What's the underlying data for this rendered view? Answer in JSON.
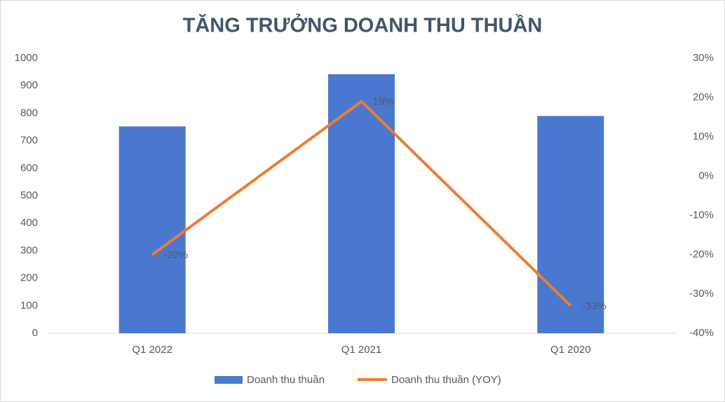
{
  "chart_data": {
    "type": "bar",
    "title": "TĂNG TRƯỞNG DOANH THU THUẦN",
    "categories": [
      "Q1 2022",
      "Q1 2021",
      "Q1 2020"
    ],
    "series": [
      {
        "name": "Doanh thu thuần",
        "type": "bar",
        "color": "#4a78cf",
        "values": [
          752,
          942,
          790
        ]
      },
      {
        "name": "Doanh thu thuần (YOY)",
        "type": "line",
        "axis": "y2",
        "color": "#ed7d31",
        "values": [
          -20,
          19,
          -33
        ],
        "value_labels": [
          "-20%",
          "19%",
          "-33%"
        ]
      }
    ],
    "ylim": [
      0,
      1000
    ],
    "yticks": [
      0,
      100,
      200,
      300,
      400,
      500,
      600,
      700,
      800,
      900,
      1000
    ],
    "y2lim": [
      -40,
      30
    ],
    "y2ticks": [
      {
        "value": 30,
        "label": "30%"
      },
      {
        "value": 20,
        "label": "20%"
      },
      {
        "value": 10,
        "label": "10%"
      },
      {
        "value": 0,
        "label": "0%"
      },
      {
        "value": -10,
        "label": "-10%"
      },
      {
        "value": -20,
        "label": "-20%"
      },
      {
        "value": -30,
        "label": "-30%"
      },
      {
        "value": -40,
        "label": "-40%"
      }
    ],
    "legend": "bottom"
  }
}
